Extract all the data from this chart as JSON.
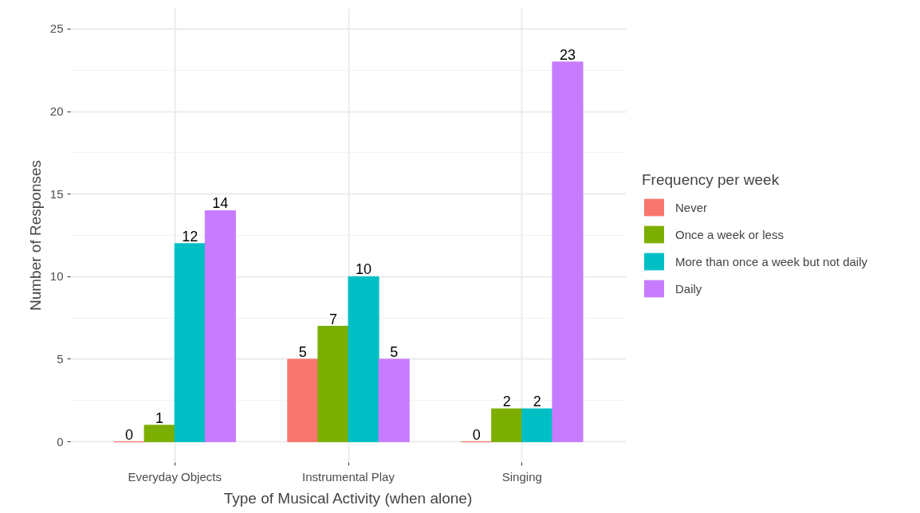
{
  "chart_data": {
    "type": "bar",
    "xlabel": "Type of Musical Activity (when alone)",
    "ylabel": "Number of Responses",
    "legend_title": "Frequency per week",
    "categories": [
      "Everyday Objects",
      "Instrumental Play",
      "Singing"
    ],
    "series": [
      {
        "name": "Never",
        "color": "#f8766d",
        "values": [
          0,
          5,
          0
        ]
      },
      {
        "name": "Once a week or less",
        "color": "#7cae00",
        "values": [
          1,
          7,
          2
        ]
      },
      {
        "name": "More than once a week but not daily",
        "color": "#00bfc4",
        "values": [
          12,
          10,
          2
        ]
      },
      {
        "name": "Daily",
        "color": "#c77cff",
        "values": [
          14,
          5,
          23
        ]
      }
    ],
    "ylim": [
      -1.25,
      26.25
    ],
    "yticks": [
      0,
      5,
      10,
      15,
      20,
      25
    ],
    "grid": true,
    "legend": "right",
    "data_labels": true
  }
}
